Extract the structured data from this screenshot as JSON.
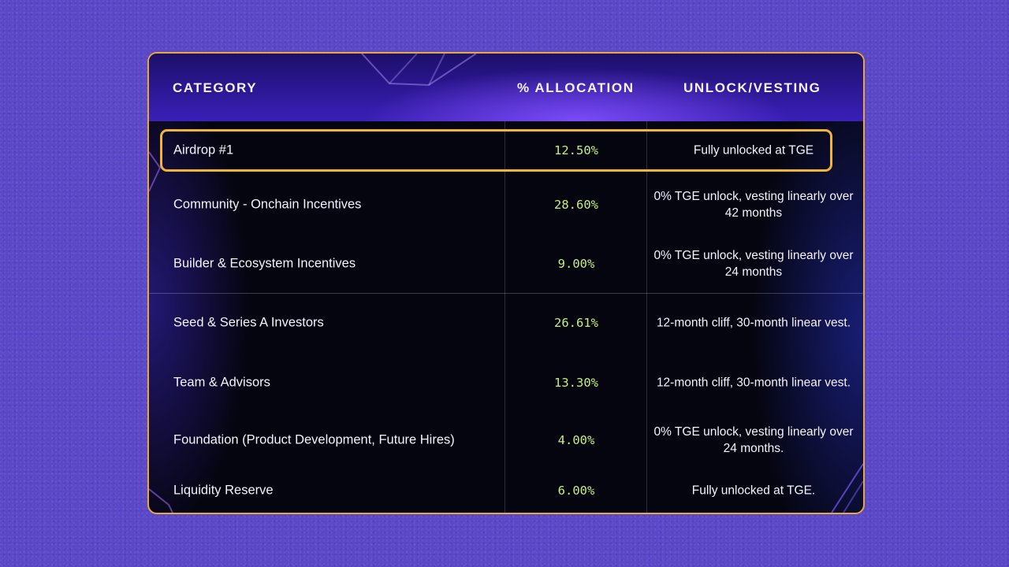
{
  "table": {
    "headers": {
      "category": "CATEGORY",
      "allocation": "% ALLOCATION",
      "unlock": "UNLOCK/VESTING"
    },
    "rows": [
      {
        "category": "Airdrop #1",
        "allocation": "12.50%",
        "unlock": "Fully unlocked at TGE",
        "highlighted": true
      },
      {
        "category": "Community - Onchain Incentives",
        "allocation": "28.60%",
        "unlock": "0% TGE unlock, vesting linearly over 42 months"
      },
      {
        "category": "Builder & Ecosystem Incentives",
        "allocation": "9.00%",
        "unlock": "0% TGE unlock, vesting linearly over 24 months"
      },
      {
        "category": "Seed & Series A Investors",
        "allocation": "26.61%",
        "unlock": "12-month cliff, 30-month linear vest."
      },
      {
        "category": "Team & Advisors",
        "allocation": "13.30%",
        "unlock": "12-month cliff, 30-month linear vest."
      },
      {
        "category": "Foundation (Product Development, Future Hires)",
        "allocation": "4.00%",
        "unlock": "0% TGE unlock, vesting linearly over 24 months."
      },
      {
        "category": "Liquidity Reserve",
        "allocation": "6.00%",
        "unlock": "Fully unlocked at TGE."
      }
    ]
  },
  "colors": {
    "background": "#5a48c8",
    "card_border": "#e8a93a",
    "highlight_border": "#f0b43a",
    "allocation_text": "#c4f07a",
    "header_bg": "#3a1fb8"
  }
}
